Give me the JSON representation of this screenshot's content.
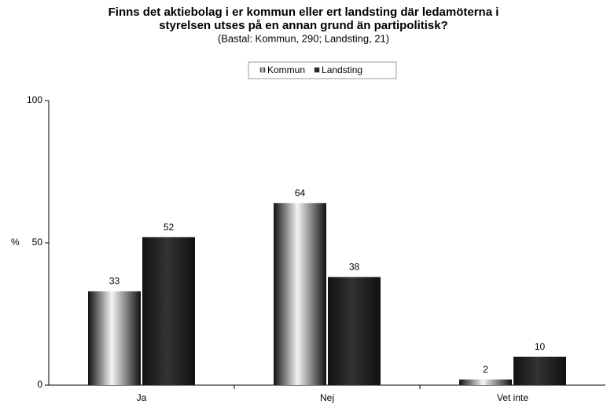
{
  "chart_data": {
    "type": "bar",
    "title_lines": [
      "Finns det aktiebolag i er kommun eller ert landsting där ledamöterna i",
      "styrelsen utses på en annan grund än partipolitisk?"
    ],
    "subtitle": "(Bastal: Kommun, 290; Landsting, 21)",
    "y_label": "%",
    "categories": [
      "Ja",
      "Nej",
      "Vet inte"
    ],
    "series": [
      {
        "name": "Kommun",
        "color": "#f4f4f4",
        "values": [
          33,
          64,
          2
        ]
      },
      {
        "name": "Landsting",
        "color": "#333333",
        "values": [
          52,
          38,
          10
        ]
      }
    ],
    "ylim": [
      0,
      100
    ],
    "yticks": [
      0,
      50,
      100
    ],
    "legend": "top"
  }
}
